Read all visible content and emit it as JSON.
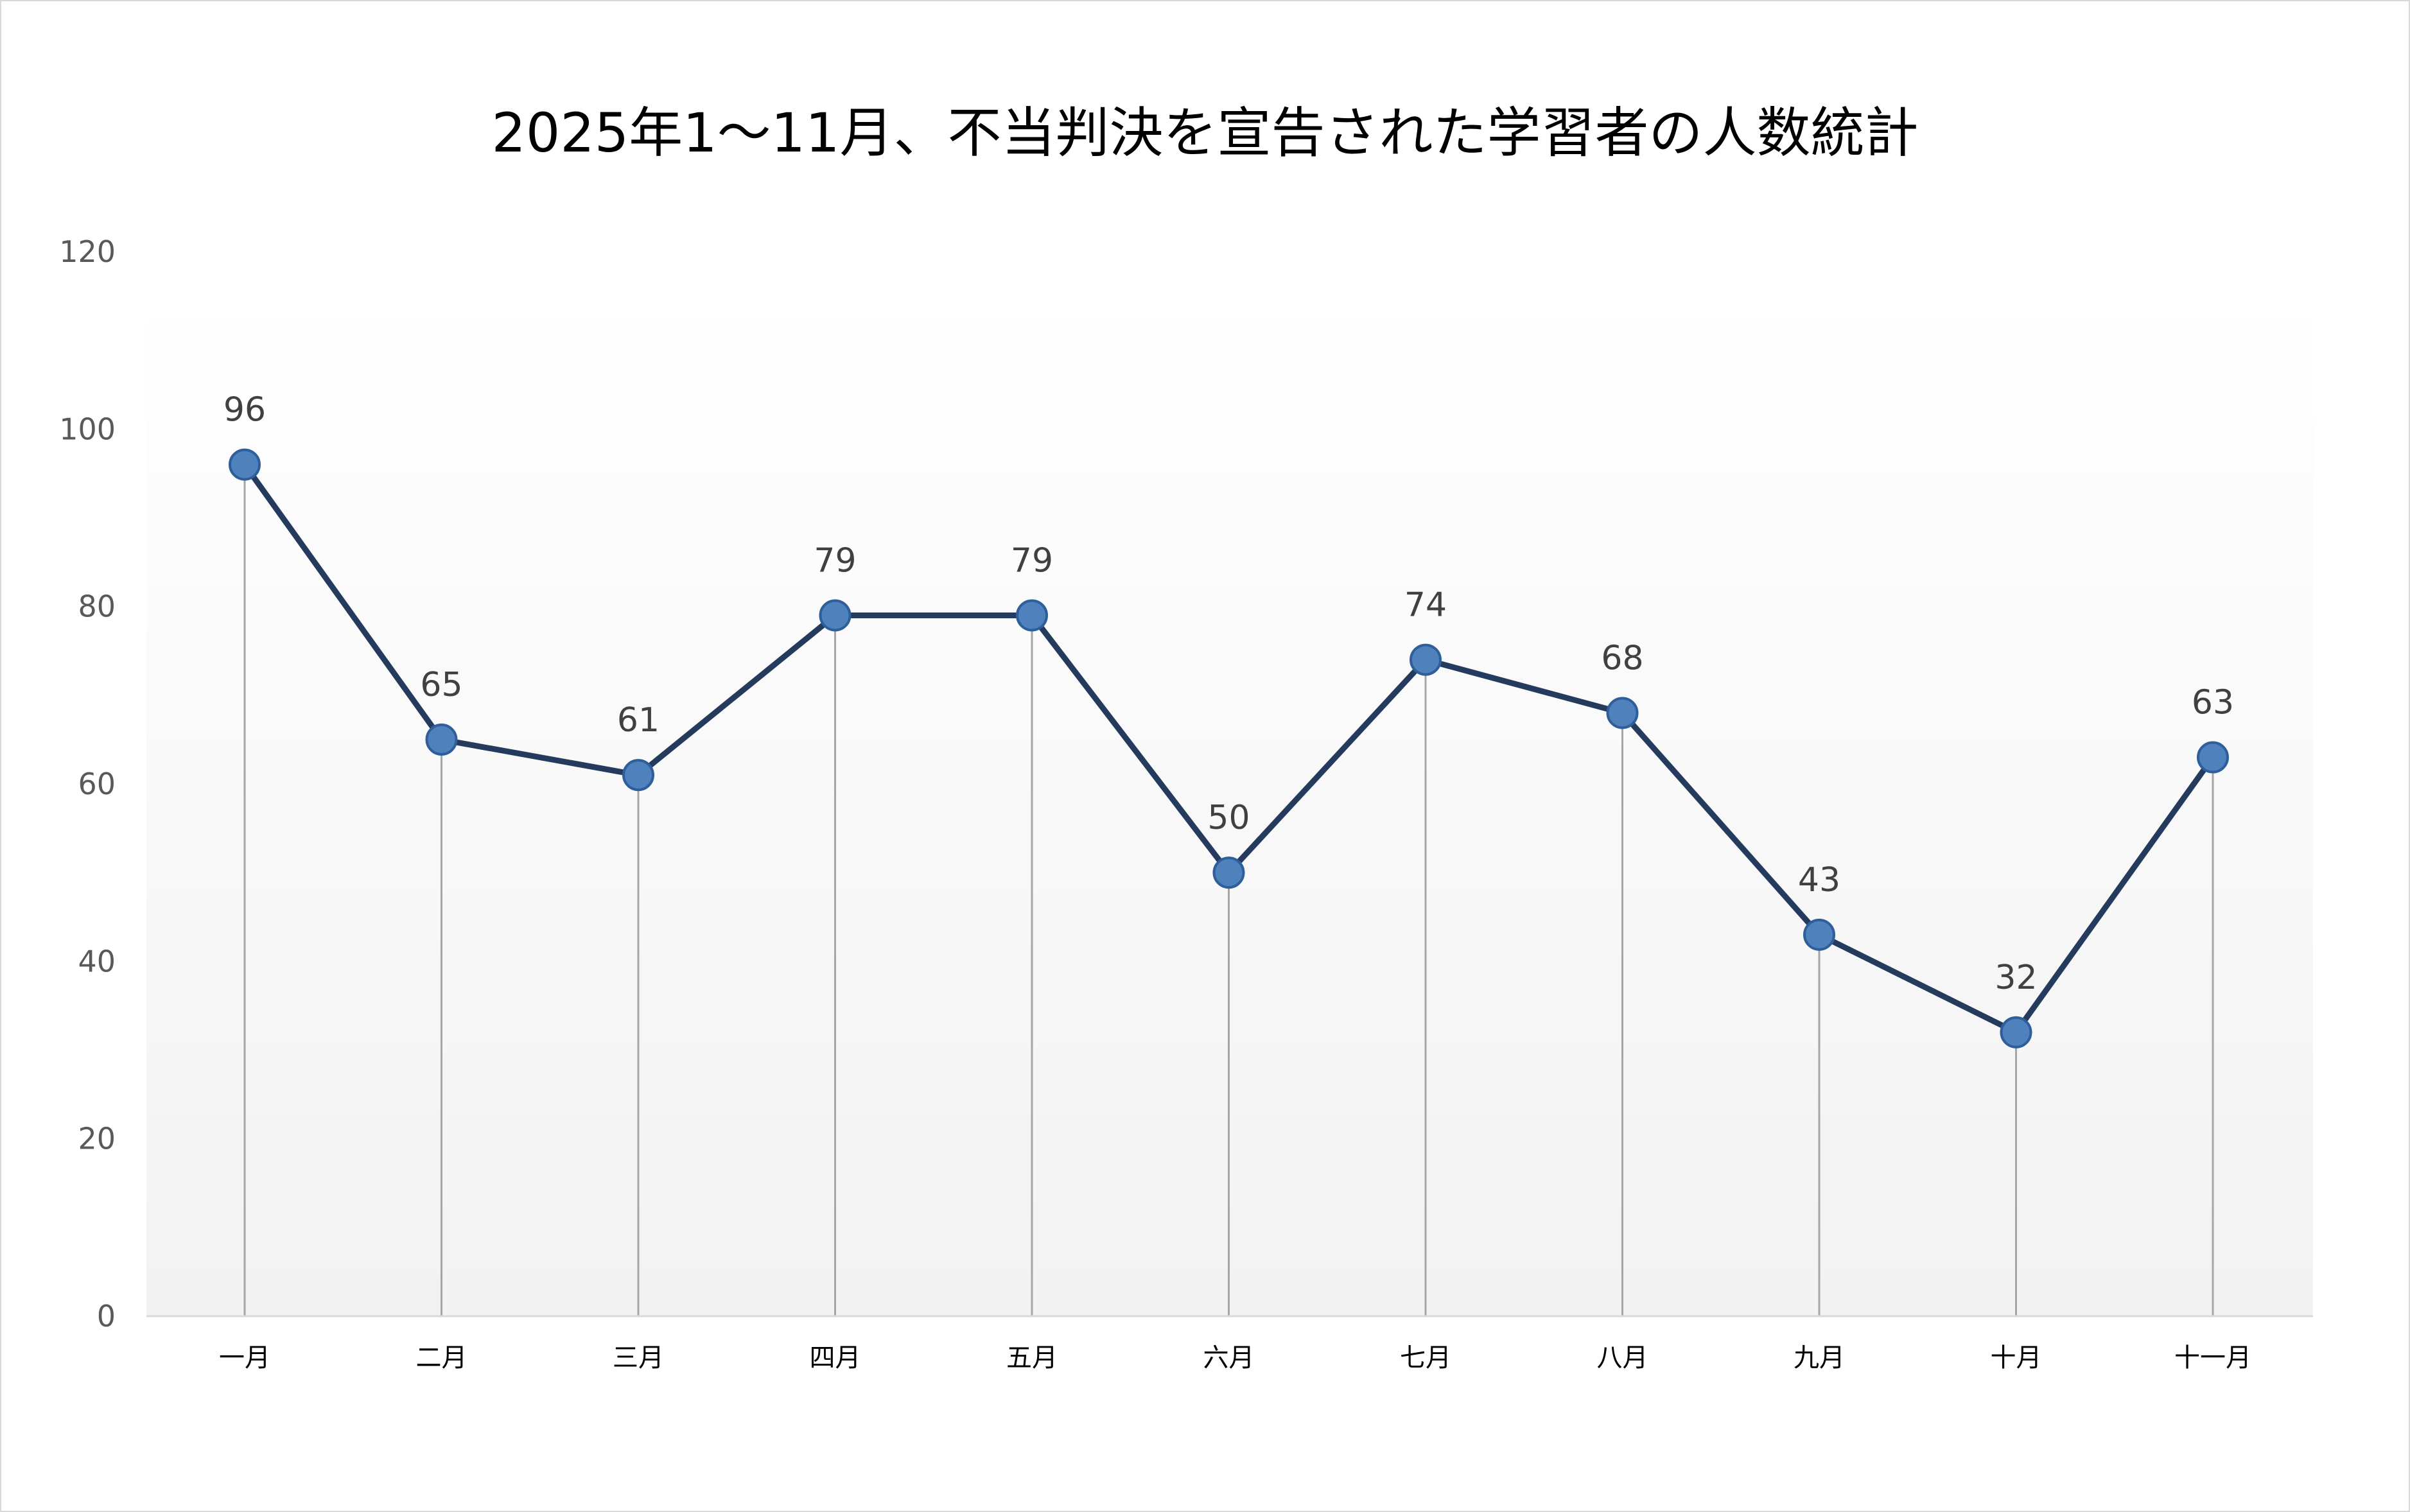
{
  "chart_data": {
    "type": "line",
    "title": "2025年1～11月、不当判決を宣告された学習者の人数統計",
    "xlabel": "",
    "ylabel": "",
    "categories": [
      "一月",
      "二月",
      "三月",
      "四月",
      "五月",
      "六月",
      "七月",
      "八月",
      "九月",
      "十月",
      "十一月"
    ],
    "series": [
      {
        "values": [
          96,
          65,
          61,
          79,
          79,
          50,
          74,
          68,
          43,
          32,
          63
        ]
      }
    ],
    "yticks": [
      "0",
      "20",
      "40",
      "60",
      "80",
      "100",
      "120"
    ],
    "ylim": [
      0,
      120
    ],
    "grid": false,
    "drop_lines": true,
    "legend": "none",
    "colors": {
      "line": "#243b5e",
      "marker_fill": "#4f81bd",
      "marker_stroke": "#2f5f9a",
      "drop_line": "#a6a6a6",
      "plot_bg_top": "#ffffff",
      "plot_bg_bottom": "#f2f2f2"
    }
  }
}
